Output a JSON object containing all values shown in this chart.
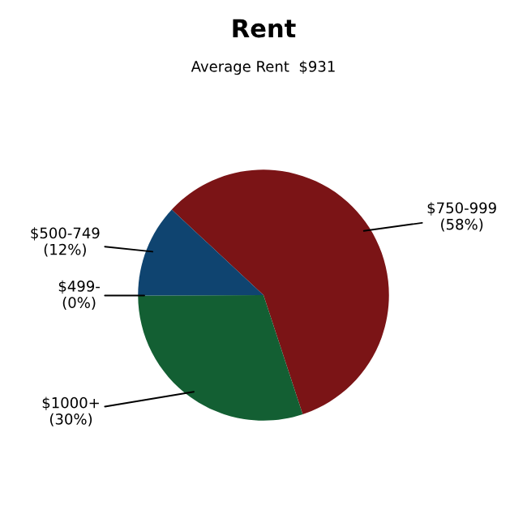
{
  "chart_data": {
    "type": "pie",
    "title": "Rent",
    "subtitle": "Average Rent  $931",
    "categories": [
      "$750-999",
      "$1000+",
      "$499-",
      "$500-749"
    ],
    "values": [
      58,
      30,
      0,
      12
    ],
    "value_labels": [
      "(58%)",
      "(30%)",
      "(0%)",
      "(12%)"
    ],
    "colors": [
      "#7b1416",
      "#135f33",
      "#1a5a3a",
      "#0f4470"
    ]
  }
}
